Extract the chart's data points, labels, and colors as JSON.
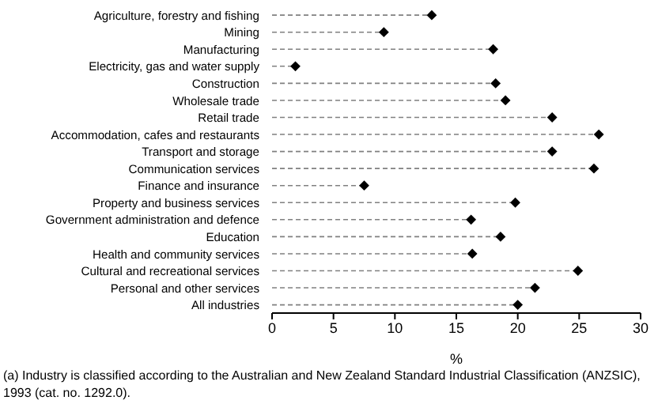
{
  "chart_data": {
    "type": "lollipop",
    "xlabel": "%",
    "categories": [
      "Agriculture, forestry and fishing",
      "Mining",
      "Manufacturing",
      "Electricity, gas and water supply",
      "Construction",
      "Wholesale trade",
      "Retail trade",
      "Accommodation, cafes and restaurants",
      "Transport and storage",
      "Communication services",
      "Finance and insurance",
      "Property and business services",
      "Government administration and defence",
      "Education",
      "Health and community services",
      "Cultural and recreational services",
      "Personal and other services",
      "All industries"
    ],
    "values": [
      13.0,
      9.1,
      18.0,
      1.9,
      18.2,
      19.0,
      22.8,
      26.6,
      22.8,
      26.2,
      7.5,
      19.8,
      16.2,
      18.6,
      16.3,
      24.9,
      21.4,
      20.0
    ],
    "color": "#000000",
    "orientation": "horizontal",
    "marker": "diamond",
    "line_style": "dashed",
    "xlim": [
      0,
      30
    ],
    "xticks": [
      0,
      5,
      10,
      15,
      20,
      25,
      30
    ],
    "annotations": [
      "(a) Industry is classified according to the Australian and New Zealand Standard Industrial Classification (ANZSIC), 1993  (cat. no. 1292.0)."
    ]
  }
}
